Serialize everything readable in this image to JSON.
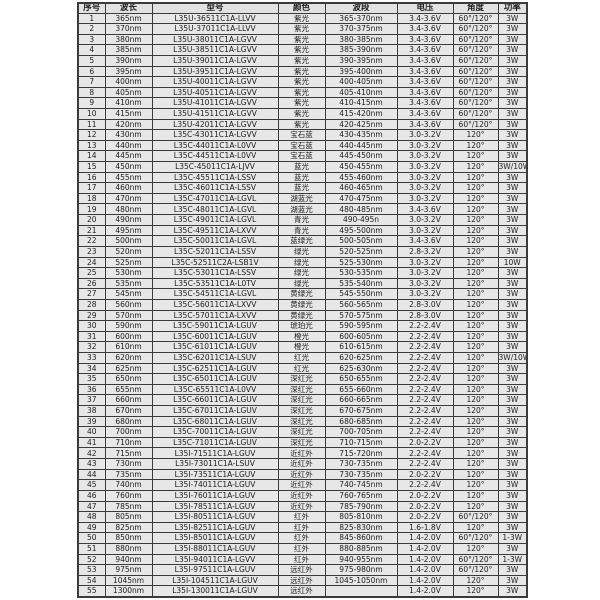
{
  "colors": {
    "cell_bg": "#e7e7e7",
    "header_bg": "#e2e2e2",
    "border": "#3b3b3b",
    "text": "#1c1c1c",
    "page_bg": "#fefefe"
  },
  "table": {
    "headers": [
      "序号",
      "波长",
      "型号",
      "颜色",
      "波段",
      "电压",
      "角度",
      "功率"
    ],
    "rows": [
      [
        "1",
        "365nm",
        "L35U-36511C1A-LLVV",
        "紫光",
        "365-370nm",
        "3.4-3.6V",
        "60°/120°",
        "3W"
      ],
      [
        "2",
        "370nm",
        "L35U-37011C1A-LLVV",
        "紫光",
        "370-375nm",
        "3.4-3.6V",
        "60°/120°",
        "3W"
      ],
      [
        "3",
        "380nm",
        "L35U-38011C1A-LGVV",
        "紫光",
        "380-385nm",
        "3.4-3.6V",
        "60°/120°",
        "3W"
      ],
      [
        "4",
        "385nm",
        "L35U-38511C1A-LGVV",
        "紫光",
        "385-390nm",
        "3.4-3.6V",
        "60°/120°",
        "3W"
      ],
      [
        "5",
        "390nm",
        "L35U-39011C1A-LGVV",
        "紫光",
        "390-395nm",
        "3.4-3.6V",
        "60°/120°",
        "3W"
      ],
      [
        "6",
        "395nm",
        "L35U-39511C1A-LGVV",
        "紫光",
        "395-400nm",
        "3.4-3.6V",
        "60°/120°",
        "3W"
      ],
      [
        "7",
        "400nm",
        "L35U-40011C1A-LGVV",
        "紫光",
        "400-405nm",
        "3.4-3.6V",
        "60°/120°",
        "3W"
      ],
      [
        "8",
        "405nm",
        "L35U-40511C1A-LGVV",
        "紫光",
        "405-410nm",
        "3.4-3.6V",
        "60°/120°",
        "3W"
      ],
      [
        "9",
        "410nm",
        "L35U-41011C1A-LGVV",
        "紫光",
        "410-415nm",
        "3.4-3.6V",
        "60°/120°",
        "3W"
      ],
      [
        "10",
        "415nm",
        "L35U-41511C1A-LGVV",
        "紫光",
        "415-420nm",
        "3.4-3.6V",
        "60°/120°",
        "3W"
      ],
      [
        "11",
        "420nm",
        "L35U-42011C1A-LGVV",
        "紫光",
        "420-425nm",
        "3.4-3.6V",
        "60°/120°",
        "3W"
      ],
      [
        "12",
        "430nm",
        "L35C-43011C1A-LGVV",
        "宝石蓝",
        "430-435nm",
        "3.0-3.2V",
        "120°",
        "3W"
      ],
      [
        "13",
        "440nm",
        "L35C-44011C1A-L0VV",
        "宝石蓝",
        "440-445nm",
        "3.0-3.2V",
        "120°",
        "3W"
      ],
      [
        "14",
        "445nm",
        "L35C-44511C1A-L0VV",
        "宝石蓝",
        "445-450nm",
        "3.0-3.2V",
        "120°",
        "3W"
      ],
      [
        "15",
        "450nm",
        "L35C-45011C1A-LJVV",
        "蓝光",
        "450-455nm",
        "3.0-3.2V",
        "120°",
        "3W/10W"
      ],
      [
        "16",
        "455nm",
        "L35C-45511C1A-LSSV",
        "蓝光",
        "455-460nm",
        "3.0-3.2V",
        "120°",
        "3W"
      ],
      [
        "17",
        "460nm",
        "L35C-46011C1A-LSSV",
        "蓝光",
        "460-465nm",
        "3.0-3.2V",
        "120°",
        "3W"
      ],
      [
        "18",
        "470nm",
        "L35C-47011C1A-LGVL",
        "湖蓝光",
        "470-475nm",
        "3.0-3.2V",
        "120°",
        "3W"
      ],
      [
        "19",
        "480nm",
        "L35C-48011C1A-LGVL",
        "湖蓝光",
        "480-485nm",
        "3.4-3.6V",
        "120°",
        "3W"
      ],
      [
        "20",
        "490nm",
        "L35C-49011C1A-LGVL",
        "青光",
        "490-495n",
        "3.0-3.2V",
        "120°",
        "3W"
      ],
      [
        "21",
        "495nm",
        "L35C-49511C1A-LXVV",
        "青光",
        "495-500nm",
        "3.0-3.2V",
        "120°",
        "3W"
      ],
      [
        "22",
        "500nm",
        "L35C-50011C1A-LGVL",
        "蓝绿光",
        "500-505nm",
        "3.4-3.6V",
        "120°",
        "3W"
      ],
      [
        "23",
        "520nm",
        "L35C-52011C1A-LSSV",
        "绿光",
        "520-525nm",
        "2.8-3.2V",
        "120°",
        "3W"
      ],
      [
        "24",
        "525nm",
        "L35C-52511C2A-LSB1V",
        "绿光",
        "525-530nm",
        "3.0-3.2V",
        "120°",
        "10W"
      ],
      [
        "25",
        "530nm",
        "L35C-53011C1A-LSSV",
        "绿光",
        "530-535nm",
        "3.0-3.2V",
        "120°",
        "3W"
      ],
      [
        "26",
        "535nm",
        "L35C-53511C1A-L0TV",
        "绿光",
        "535-540nm",
        "3.0-3.2V",
        "120°",
        "3W"
      ],
      [
        "27",
        "545nm",
        "L35C-54511C1A-LGVL",
        "黄绿光",
        "545-550nm",
        "3.0-3.2V",
        "120°",
        "3W"
      ],
      [
        "28",
        "560nm",
        "L35C-56011C1A-LXVV",
        "黄绿光",
        "560-565nm",
        "2.8-3.0V",
        "120°",
        "3W"
      ],
      [
        "29",
        "570nm",
        "L35C-57011C1A-LXVV",
        "黄绿光",
        "570-575nm",
        "2.8-3.0V",
        "120°",
        "3W"
      ],
      [
        "30",
        "590nm",
        "L35C-59011C1A-LGUV",
        "琥珀光",
        "590-595nm",
        "2.2-2.4V",
        "120°",
        "3W"
      ],
      [
        "31",
        "600nm",
        "L35C-60011C1A-LGUV",
        "橙光",
        "600-605nm",
        "2.2-2.4V",
        "120°",
        "3W"
      ],
      [
        "32",
        "610nm",
        "L35C-61011C1A-LGUV",
        "橙光",
        "610-615nm",
        "2.2-2.4V",
        "120°",
        "3W"
      ],
      [
        "33",
        "620nm",
        "L35C-62011C1A-LSUV",
        "红光",
        "620-625nm",
        "2.2-2.4V",
        "120°",
        "3W/10W"
      ],
      [
        "34",
        "625nm",
        "L35C-62511C1A-LGUV",
        "红光",
        "625-630nm",
        "2.2-2.4V",
        "120°",
        "3W"
      ],
      [
        "35",
        "650nm",
        "L35C-65011C1A-LGUV",
        "深红光",
        "650-655nm",
        "2.2-2.4V",
        "120°",
        "3W"
      ],
      [
        "36",
        "655nm",
        "L35C-65511C1A-L0VV",
        "深红光",
        "655-660nm",
        "2.2-2.4V",
        "120°",
        "3W"
      ],
      [
        "37",
        "660nm",
        "L35C-66011C1A-LGUV",
        "深红光",
        "660-665nm",
        "2.2-2.4V",
        "120°",
        "3W"
      ],
      [
        "38",
        "670nm",
        "L35C-67011C1A-LGUV",
        "深红光",
        "670-675nm",
        "2.2-2.4V",
        "120°",
        "3W"
      ],
      [
        "39",
        "680nm",
        "L35C-68011C1A-LGUV",
        "深红光",
        "680-685nm",
        "2.2-2.4V",
        "120°",
        "3W"
      ],
      [
        "40",
        "700nm",
        "L35C-70011C1A-LGUV",
        "深红光",
        "700-705nm",
        "2.2-2.4V",
        "120°",
        "3W"
      ],
      [
        "41",
        "710nm",
        "L35C-71011C1A-LGUV",
        "深红光",
        "710-715nm",
        "2.0-2.2V",
        "120°",
        "3W"
      ],
      [
        "42",
        "715nm",
        "L35I-71511C1A-LGUV",
        "近红外",
        "715-720nm",
        "2.2-2.4V",
        "120°",
        "3W"
      ],
      [
        "43",
        "730nm",
        "L35I-73011C1A-LSUV",
        "近红外",
        "730-735nm",
        "2.2-2.4V",
        "120°",
        "3W"
      ],
      [
        "44",
        "735nm",
        "L35I-73511C1A-LGUV",
        "近红外",
        "730-735nm",
        "2.0-2.2V",
        "120°",
        "3W"
      ],
      [
        "45",
        "740nm",
        "L35I-74011C1A-LGUV",
        "近红外",
        "740-745nm",
        "2.2-2.4V",
        "120°",
        "3W"
      ],
      [
        "46",
        "760nm",
        "L35I-76011C1A-LGUV",
        "近红外",
        "760-765nm",
        "2.0-2.2V",
        "120°",
        "3W"
      ],
      [
        "47",
        "785nm",
        "L35I-78511C1A-LGUV",
        "近红外",
        "785-790nm",
        "2.0-2.2V",
        "120°",
        "3W"
      ],
      [
        "48",
        "805nm",
        "L35I-80511C1A-LGUV",
        "红外",
        "805-810nm",
        "2.0-2.2V",
        "60°/120°",
        "3W"
      ],
      [
        "49",
        "825nm",
        "L35I-82511C1A-LGUV",
        "红外",
        "825-830nm",
        "1.6-1.8V",
        "120°",
        "3W"
      ],
      [
        "50",
        "850nm",
        "L35I-85011C1A-LGUV",
        "红外",
        "845-860nm",
        "1.4-2.0V",
        "60°/120°",
        "1-3W"
      ],
      [
        "51",
        "880nm",
        "L35I-88011C1A-LGUV",
        "红外",
        "880-885nm",
        "1.4-2.0V",
        "120°",
        "3W"
      ],
      [
        "52",
        "940nm",
        "L35I-94011C1A-LGVV",
        "红外",
        "940-955nm",
        "1.4-2.0V",
        "60°/120°",
        "1-3W"
      ],
      [
        "53",
        "975nm",
        "L35I-97511C1A-LGUV",
        "远红外",
        "975-980nm",
        "1.4-2.0V",
        "60°/120°",
        "3W"
      ],
      [
        "54",
        "1045nm",
        "L35I-104511C1A-LGUV",
        "远红外",
        "1045-1050nm",
        "1.4-2.0V",
        "120°",
        "3W"
      ],
      [
        "55",
        "1300nm",
        "L35I-130011C1A-LGUV",
        "远红外",
        "",
        "1.4-2.0V",
        "120°",
        "3W"
      ]
    ]
  }
}
